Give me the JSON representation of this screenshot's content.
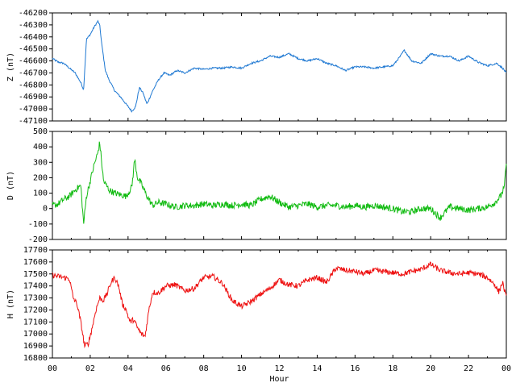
{
  "chart_data": [
    {
      "type": "line",
      "ylabel": "Z (nT)",
      "color": "#1e78d2",
      "ylim": [
        -47100,
        -46200
      ],
      "yticks": [
        -46200,
        -46300,
        -46400,
        -46500,
        -46600,
        -46700,
        -46800,
        -46900,
        -47000,
        -47100
      ],
      "grid": false,
      "x_hours": [
        0,
        0.3,
        0.6,
        0.9,
        1.2,
        1.5,
        1.65,
        1.8,
        2.0,
        2.2,
        2.4,
        2.5,
        2.6,
        2.8,
        3.0,
        3.3,
        3.6,
        3.9,
        4.2,
        4.4,
        4.6,
        4.8,
        5.0,
        5.3,
        5.6,
        5.9,
        6.2,
        6.6,
        7.0,
        7.5,
        8.0,
        8.5,
        9.0,
        9.5,
        10.0,
        10.5,
        11.0,
        11.5,
        12.0,
        12.5,
        13.0,
        13.5,
        14.0,
        14.5,
        15.0,
        15.5,
        16.0,
        16.5,
        17.0,
        17.5,
        18.0,
        18.4,
        18.6,
        19.0,
        19.5,
        20.0,
        20.5,
        21.0,
        21.5,
        22.0,
        22.5,
        23.0,
        23.5,
        23.8,
        24.0
      ],
      "values": [
        -46580,
        -46610,
        -46620,
        -46660,
        -46700,
        -46780,
        -46840,
        -46420,
        -46380,
        -46320,
        -46270,
        -46300,
        -46450,
        -46680,
        -46760,
        -46850,
        -46900,
        -46960,
        -47020,
        -46980,
        -46820,
        -46870,
        -46960,
        -46850,
        -46760,
        -46700,
        -46720,
        -46680,
        -46700,
        -46660,
        -46670,
        -46660,
        -46660,
        -46650,
        -46660,
        -46620,
        -46600,
        -46560,
        -46570,
        -46540,
        -46580,
        -46600,
        -46580,
        -46620,
        -46640,
        -46680,
        -46650,
        -46650,
        -46660,
        -46650,
        -46640,
        -46560,
        -46510,
        -46600,
        -46620,
        -46540,
        -46560,
        -46560,
        -46600,
        -46560,
        -46610,
        -46640,
        -46620,
        -46660,
        -46700
      ]
    },
    {
      "type": "line",
      "ylabel": "D (nT)",
      "color": "#11bb11",
      "ylim": [
        -200,
        500
      ],
      "yticks": [
        500,
        400,
        300,
        200,
        100,
        0,
        -100,
        -200
      ],
      "grid": false,
      "x_hours": [
        0,
        0.3,
        0.6,
        0.9,
        1.2,
        1.5,
        1.65,
        1.8,
        2.0,
        2.2,
        2.4,
        2.5,
        2.7,
        3.0,
        3.3,
        3.6,
        3.9,
        4.2,
        4.35,
        4.5,
        4.7,
        5.0,
        5.3,
        5.6,
        6.0,
        6.5,
        7.0,
        7.5,
        8.0,
        8.5,
        9.0,
        9.5,
        10.0,
        10.5,
        11.0,
        11.5,
        12.0,
        12.5,
        13.0,
        13.5,
        14.0,
        14.5,
        15.0,
        15.5,
        16.0,
        16.5,
        17.0,
        17.5,
        18.0,
        18.5,
        19.0,
        19.5,
        20.0,
        20.5,
        21.0,
        21.5,
        22.0,
        22.5,
        23.0,
        23.4,
        23.7,
        23.9,
        24.0
      ],
      "values": [
        20,
        30,
        60,
        80,
        120,
        150,
        -100,
        80,
        180,
        280,
        360,
        430,
        180,
        120,
        100,
        90,
        80,
        140,
        320,
        200,
        160,
        80,
        20,
        40,
        30,
        10,
        20,
        20,
        30,
        20,
        30,
        20,
        30,
        20,
        60,
        80,
        40,
        10,
        20,
        30,
        10,
        20,
        20,
        10,
        20,
        10,
        20,
        10,
        0,
        -20,
        -20,
        0,
        0,
        -60,
        10,
        0,
        -10,
        0,
        10,
        40,
        80,
        140,
        300
      ]
    },
    {
      "type": "line",
      "ylabel": "H (nT)",
      "color": "#ee1111",
      "ylim": [
        16800,
        17700
      ],
      "yticks": [
        17700,
        17600,
        17500,
        17400,
        17300,
        17200,
        17100,
        17000,
        16900,
        16800
      ],
      "grid": false,
      "xlabel": "Hour",
      "xticks": [
        "00",
        "02",
        "04",
        "06",
        "08",
        "10",
        "12",
        "14",
        "16",
        "18",
        "20",
        "22",
        "00"
      ],
      "x_hours": [
        0,
        0.3,
        0.6,
        0.9,
        1.1,
        1.3,
        1.5,
        1.7,
        1.9,
        2.1,
        2.3,
        2.5,
        2.7,
        2.9,
        3.1,
        3.3,
        3.5,
        3.7,
        3.9,
        4.1,
        4.3,
        4.5,
        4.7,
        4.9,
        5.1,
        5.3,
        5.6,
        6.0,
        6.5,
        7.0,
        7.5,
        8.0,
        8.5,
        9.0,
        9.5,
        10.0,
        10.5,
        11.0,
        11.5,
        12.0,
        12.5,
        13.0,
        13.5,
        14.0,
        14.5,
        15.0,
        15.5,
        16.0,
        16.5,
        17.0,
        17.5,
        18.0,
        18.5,
        19.0,
        19.5,
        20.0,
        20.5,
        21.0,
        21.5,
        22.0,
        22.5,
        23.0,
        23.4,
        23.6,
        23.8,
        24.0
      ],
      "values": [
        17490,
        17480,
        17470,
        17460,
        17300,
        17250,
        17100,
        16900,
        16920,
        17050,
        17200,
        17300,
        17280,
        17340,
        17430,
        17470,
        17400,
        17250,
        17200,
        17100,
        17120,
        17050,
        17000,
        16980,
        17200,
        17350,
        17340,
        17400,
        17410,
        17360,
        17380,
        17470,
        17480,
        17420,
        17280,
        17230,
        17270,
        17330,
        17380,
        17450,
        17410,
        17400,
        17450,
        17470,
        17430,
        17550,
        17530,
        17520,
        17500,
        17530,
        17520,
        17510,
        17500,
        17520,
        17540,
        17580,
        17530,
        17510,
        17500,
        17510,
        17500,
        17470,
        17410,
        17350,
        17430,
        17300
      ]
    }
  ],
  "icons": {}
}
